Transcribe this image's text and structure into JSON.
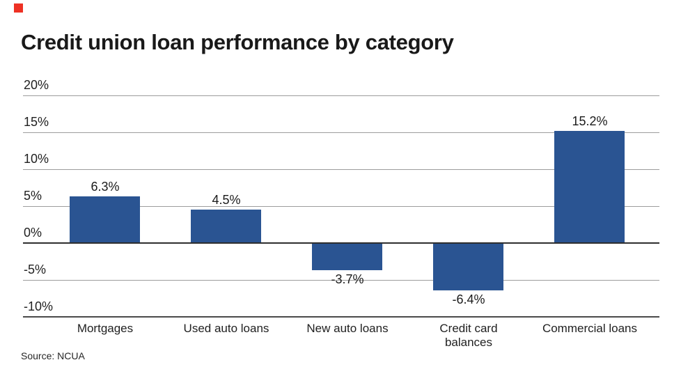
{
  "brand": {
    "mark_color": "#ee3124"
  },
  "chart_data": {
    "type": "bar",
    "title": "Credit union loan performance by category",
    "categories": [
      "Mortgages",
      "Used auto loans",
      "New auto loans",
      "Credit card balances",
      "Commercial loans"
    ],
    "values": [
      6.3,
      4.5,
      -3.7,
      -6.4,
      15.2
    ],
    "data_labels": [
      "6.3%",
      "4.5%",
      "-3.7%",
      "-6.4%",
      "15.2%"
    ],
    "yticks": [
      20,
      15,
      10,
      5,
      0,
      -5,
      -10
    ],
    "ytick_labels": [
      "20%",
      "15%",
      "10%",
      "5%",
      "0%",
      "-5%",
      "-10%"
    ],
    "ylim": [
      -10,
      20
    ],
    "xlabel": "",
    "ylabel": "",
    "grid": true,
    "legend": "none",
    "bar_color": "#2a5492",
    "grid_color": "#9c9c9c",
    "zero_line_color": "#2e2e2e",
    "source": "Source: NCUA"
  }
}
